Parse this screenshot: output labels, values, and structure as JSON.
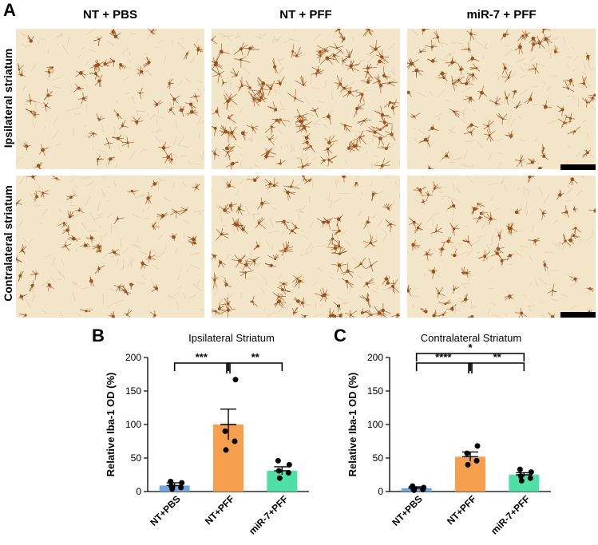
{
  "panel_letters": {
    "a": "A",
    "b": "B",
    "c": "C"
  },
  "columns": [
    "NT + PBS",
    "NT + PFF",
    "miR-7 + PFF"
  ],
  "rows": [
    "Ipsilateral striatum",
    "Contralateral striatum"
  ],
  "micrographs": {
    "background": "#f3e5c8",
    "cell_color": "#a0521c",
    "density": [
      [
        0.35,
        1.0,
        0.55
      ],
      [
        0.3,
        0.75,
        0.45
      ]
    ]
  },
  "chart_data": [
    {
      "type": "bar",
      "title": "Ipsilateral Striatum",
      "ylabel": "Relative Iba-1 OD (%)",
      "xlabel": "",
      "categories": [
        "NT+PBS",
        "NT+PFF",
        "miR-7+PFF"
      ],
      "values": [
        9,
        100,
        31
      ],
      "errors": [
        4,
        23,
        6
      ],
      "colors": [
        "#6fa8dc",
        "#f6a04d",
        "#4fe0a8"
      ],
      "points": [
        [
          4,
          6,
          8,
          13,
          15
        ],
        [
          62,
          75,
          90,
          167
        ],
        [
          20,
          28,
          31,
          40,
          46
        ]
      ],
      "ylim": [
        0,
        200
      ],
      "yticks": [
        0,
        50,
        100,
        150,
        200
      ],
      "significance": [
        {
          "from": 0,
          "to": 1,
          "label": "***",
          "level": 1
        },
        {
          "from": 1,
          "to": 2,
          "label": "**",
          "level": 1
        }
      ]
    },
    {
      "type": "bar",
      "title": "Contralateral Striatum",
      "ylabel": "Relative Iba-1 OD (%)",
      "xlabel": "",
      "categories": [
        "NT+PBS",
        "NT+PFF",
        "miR-7+PFF"
      ],
      "values": [
        5,
        52,
        25
      ],
      "errors": [
        2,
        7,
        3
      ],
      "colors": [
        "#6fa8dc",
        "#f6a04d",
        "#4fe0a8"
      ],
      "points": [
        [
          2,
          3,
          4,
          6,
          8
        ],
        [
          40,
          46,
          57,
          68
        ],
        [
          16,
          20,
          23,
          29,
          33
        ]
      ],
      "ylim": [
        0,
        200
      ],
      "yticks": [
        0,
        50,
        100,
        150,
        200
      ],
      "significance": [
        {
          "from": 0,
          "to": 2,
          "label": "*",
          "level": 2
        },
        {
          "from": 0,
          "to": 1,
          "label": "****",
          "level": 1
        },
        {
          "from": 1,
          "to": 2,
          "label": "**",
          "level": 1
        }
      ]
    }
  ]
}
